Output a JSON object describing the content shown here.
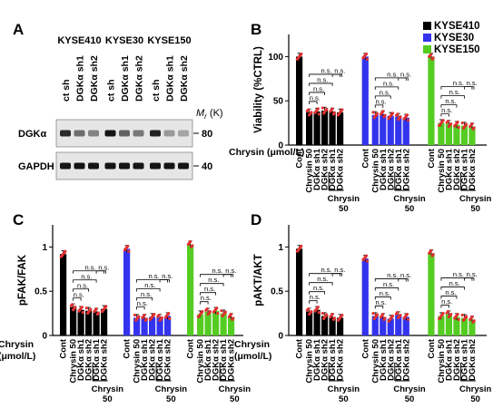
{
  "panel_letters": [
    "A",
    "B",
    "C",
    "D"
  ],
  "blot": {
    "cell_lines": [
      "KYSE410",
      "KYSE30",
      "KYSE150"
    ],
    "lane_labels": [
      "ct sh",
      "DGKα sh1",
      "DGKα sh2",
      "ct sh",
      "DGKα sh1",
      "DGKα sh2",
      "ct sh",
      "DGKα sh1",
      "DGKα sh2"
    ],
    "rows": [
      {
        "label": "DGKα",
        "marker": "80",
        "intensities": [
          0.85,
          0.55,
          0.45,
          0.95,
          0.6,
          0.5,
          0.9,
          0.35,
          0.3
        ]
      },
      {
        "label": "GAPDH",
        "marker": "40",
        "intensities": [
          0.95,
          0.95,
          0.95,
          0.95,
          0.95,
          0.95,
          0.95,
          0.95,
          0.95
        ]
      }
    ],
    "mr_label": "M",
    "mr_sub": "r",
    "mr_unit": " (K)"
  },
  "legend": [
    {
      "name": "KYSE410",
      "color": "#000000"
    },
    {
      "name": "KYSE30",
      "color": "#3333ee"
    },
    {
      "name": "KYSE150",
      "color": "#55cc22"
    }
  ],
  "x_axis": {
    "title_line1": "Chrysin",
    "title_line2": "(μmol/L)",
    "title_b": "Chrysin (μmol/L)",
    "tick_labels": [
      "Cont",
      "Chrysin 50",
      "DGKα sh1",
      "DGKα sh2",
      "DGKα sh1",
      "DGKα sh2"
    ],
    "group_label_line1": "Chrysin",
    "group_label_line2": "50"
  },
  "ns_label": "n.s.",
  "chart_data": [
    {
      "type": "bar",
      "panel": "B",
      "ylabel": "Viability (%CTRL)",
      "ylim": [
        0,
        125
      ],
      "yticks": [
        0,
        50,
        100
      ],
      "categories": [
        "Cont",
        "Chrysin 50",
        "DGKα sh1",
        "DGKα sh2",
        "Chrysin 50 + DGKα sh1",
        "Chrysin 50 + DGKα sh2"
      ],
      "series": [
        {
          "name": "KYSE410",
          "values": [
            100,
            37,
            38,
            39,
            38,
            37
          ]
        },
        {
          "name": "KYSE30",
          "values": [
            100,
            34,
            35,
            33,
            32,
            31
          ]
        },
        {
          "name": "KYSE150",
          "values": [
            100,
            25,
            24,
            23,
            22,
            21
          ]
        }
      ]
    },
    {
      "type": "bar",
      "panel": "C",
      "ylabel": "pFAK/FAK",
      "ylim": [
        0,
        1.25
      ],
      "yticks": [
        0,
        0.5,
        1
      ],
      "categories": [
        "Cont",
        "Chrysin 50",
        "DGKα sh1",
        "DGKα sh2",
        "Chrysin 50 + DGKα sh1",
        "Chrysin 50 + DGKα sh2"
      ],
      "series": [
        {
          "name": "KYSE410",
          "values": [
            0.92,
            0.32,
            0.29,
            0.28,
            0.27,
            0.3
          ]
        },
        {
          "name": "KYSE30",
          "values": [
            0.98,
            0.2,
            0.2,
            0.21,
            0.2,
            0.22
          ]
        },
        {
          "name": "KYSE150",
          "values": [
            1.03,
            0.24,
            0.27,
            0.28,
            0.25,
            0.21
          ]
        }
      ]
    },
    {
      "type": "bar",
      "panel": "D",
      "ylabel": "pAKT/AKT",
      "ylim": [
        0,
        1.25
      ],
      "yticks": [
        0,
        0.5,
        1
      ],
      "categories": [
        "Cont",
        "Chrysin 50",
        "DGKα sh1",
        "DGKα sh2",
        "Chrysin 50 + DGKα sh1",
        "Chrysin 50 + DGKα sh2"
      ],
      "series": [
        {
          "name": "KYSE410",
          "values": [
            0.98,
            0.27,
            0.29,
            0.22,
            0.21,
            0.2
          ]
        },
        {
          "name": "KYSE30",
          "values": [
            0.87,
            0.22,
            0.21,
            0.19,
            0.23,
            0.21
          ]
        },
        {
          "name": "KYSE150",
          "values": [
            0.93,
            0.22,
            0.24,
            0.21,
            0.2,
            0.18
          ]
        }
      ]
    }
  ]
}
